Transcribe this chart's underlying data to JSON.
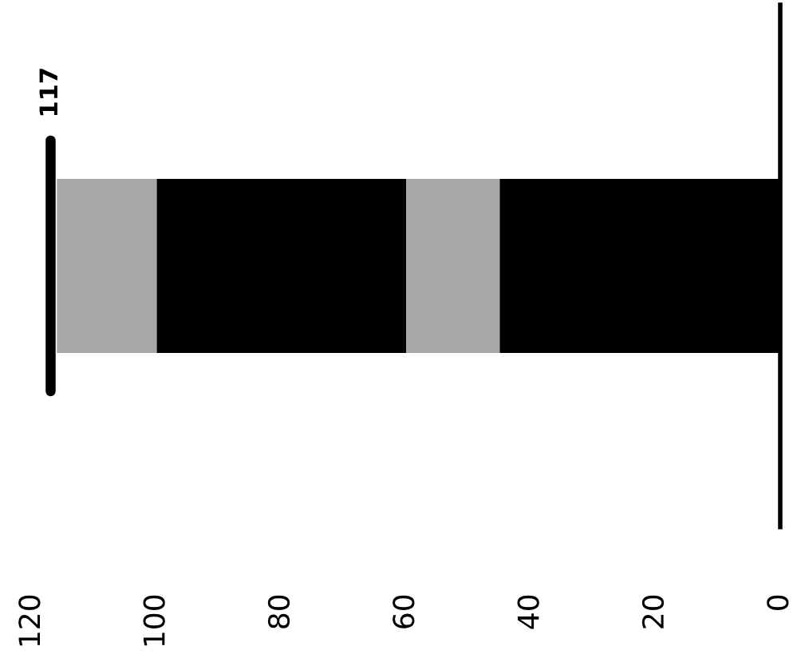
{
  "chart_data": {
    "type": "bar",
    "orientation": "horizontal",
    "stacked": true,
    "categories": [
      null
    ],
    "series": [
      {
        "color": "#000000",
        "values": [
          45
        ]
      },
      {
        "color": "#a8a8a8",
        "values": [
          15
        ]
      },
      {
        "color": "#000000",
        "values": [
          40
        ]
      },
      {
        "color": "#a8a8a8",
        "values": [
          16
        ]
      }
    ],
    "xlim": [
      120,
      0
    ],
    "xticks": [
      0,
      20,
      40,
      60,
      80,
      100,
      120
    ],
    "ref_lines": [
      {
        "axis": "x",
        "value": 117,
        "label": "117",
        "color": "#000000"
      }
    ],
    "grid": false,
    "legend": false
  }
}
